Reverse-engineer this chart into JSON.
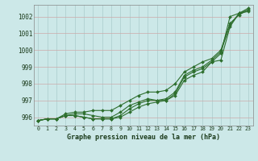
{
  "title": "Graphe pression niveau de la mer (hPa)",
  "background_color": "#cce8e8",
  "grid_color": "#aacccc",
  "line_color": "#2d6e2d",
  "x_labels": [
    "0",
    "1",
    "2",
    "3",
    "4",
    "5",
    "6",
    "7",
    "8",
    "9",
    "10",
    "11",
    "12",
    "13",
    "14",
    "15",
    "16",
    "17",
    "18",
    "19",
    "20",
    "21",
    "22",
    "23"
  ],
  "ylim": [
    995.5,
    1002.7
  ],
  "yticks": [
    996,
    997,
    998,
    999,
    1000,
    1001,
    1002
  ],
  "series": [
    [
      995.8,
      995.9,
      995.9,
      996.1,
      996.1,
      996.0,
      995.9,
      995.9,
      995.9,
      996.0,
      996.3,
      996.6,
      996.8,
      996.9,
      997.0,
      997.3,
      998.2,
      998.5,
      998.7,
      999.3,
      999.8,
      1002.0,
      1002.2,
      1002.5
    ],
    [
      995.8,
      995.9,
      995.9,
      996.1,
      996.1,
      996.0,
      995.9,
      995.9,
      995.9,
      996.1,
      996.5,
      996.8,
      997.0,
      997.0,
      997.0,
      997.4,
      998.4,
      998.7,
      998.9,
      999.3,
      999.4,
      1001.4,
      1002.2,
      1002.3
    ],
    [
      995.8,
      995.9,
      995.9,
      996.1,
      996.2,
      996.2,
      996.1,
      996.0,
      996.0,
      996.3,
      996.7,
      996.9,
      997.1,
      997.0,
      997.1,
      997.5,
      998.5,
      998.8,
      999.0,
      999.4,
      999.9,
      1001.5,
      1002.2,
      1002.4
    ],
    [
      995.8,
      995.9,
      995.9,
      996.2,
      996.3,
      996.3,
      996.4,
      996.4,
      996.4,
      996.7,
      997.0,
      997.3,
      997.5,
      997.5,
      997.6,
      998.0,
      998.7,
      999.0,
      999.3,
      999.5,
      1000.0,
      1001.6,
      1002.1,
      1002.4
    ]
  ]
}
